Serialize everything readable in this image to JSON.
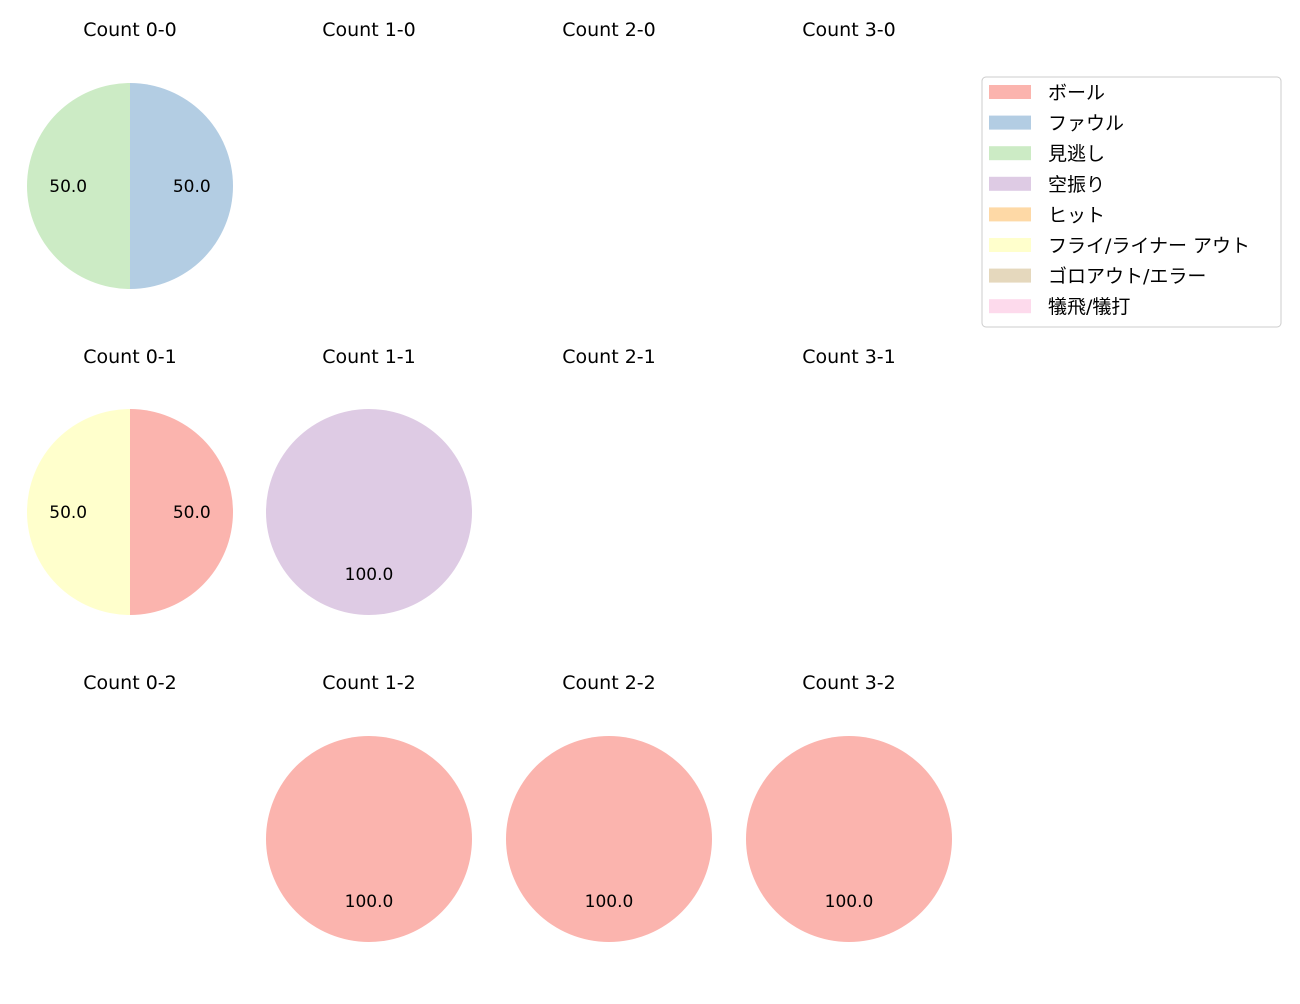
{
  "chart_data": {
    "type": "pie",
    "categories": [
      "ボール",
      "ファウル",
      "見逃し",
      "空振り",
      "ヒット",
      "フライ/ライナー アウト",
      "ゴロアウト/エラー",
      "犠飛/犠打"
    ],
    "colors": [
      "#fbb4ae",
      "#b3cde3",
      "#ccebc5",
      "#decbe4",
      "#fed9a6",
      "#ffffcc",
      "#e5d8bd",
      "#fddaec"
    ],
    "legend_placement": "top-right",
    "start_angle": 90,
    "direction": "clockwise",
    "value_format": "percent with one decimal",
    "charts": [
      {
        "title": "Count 0-0",
        "values": [
          0,
          50,
          50,
          0,
          0,
          0,
          0,
          0
        ]
      },
      {
        "title": "Count 1-0",
        "values": []
      },
      {
        "title": "Count 2-0",
        "values": []
      },
      {
        "title": "Count 3-0",
        "values": []
      },
      {
        "title": "Count 0-1",
        "values": [
          50,
          0,
          0,
          0,
          0,
          50,
          0,
          0
        ]
      },
      {
        "title": "Count 1-1",
        "values": [
          0,
          0,
          0,
          100,
          0,
          0,
          0,
          0
        ]
      },
      {
        "title": "Count 2-1",
        "values": []
      },
      {
        "title": "Count 3-1",
        "values": []
      },
      {
        "title": "Count 0-2",
        "values": []
      },
      {
        "title": "Count 1-2",
        "values": [
          100,
          0,
          0,
          0,
          0,
          0,
          0,
          0
        ]
      },
      {
        "title": "Count 2-2",
        "values": [
          100,
          0,
          0,
          0,
          0,
          0,
          0,
          0
        ]
      },
      {
        "title": "Count 3-2",
        "values": [
          100,
          0,
          0,
          0,
          0,
          0,
          0,
          0
        ]
      }
    ]
  }
}
